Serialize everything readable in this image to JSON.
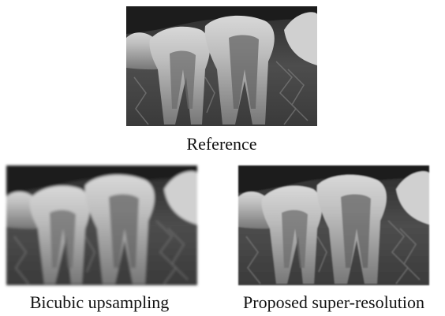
{
  "figure": {
    "panels": [
      {
        "caption": "Reference"
      },
      {
        "caption": "Bicubic upsampling"
      },
      {
        "caption": "Proposed super-resolution"
      }
    ]
  }
}
